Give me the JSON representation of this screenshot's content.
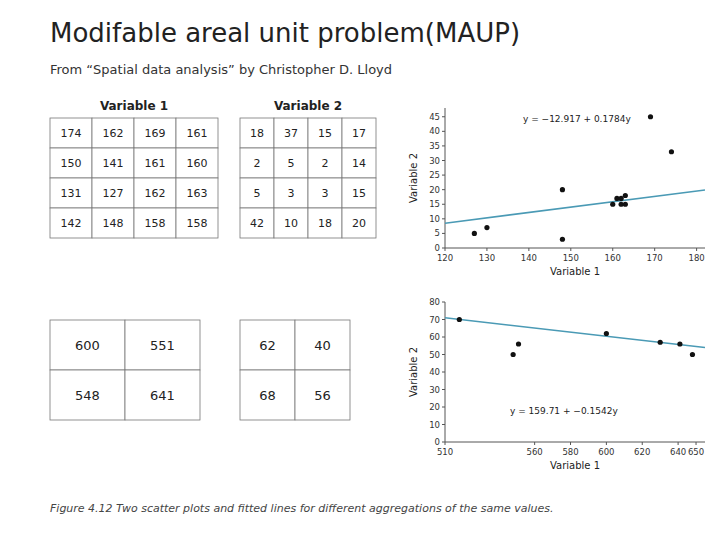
{
  "title": "Modifable areal unit problem(MAUP)",
  "subtitle": "From “Spatial data analysis” by Christopher D. Lloyd",
  "caption": "Figure 4.12  Two scatter plots and fitted lines for different aggregations of the same values.",
  "chart_data": [
    {
      "type": "table",
      "title": "Variable 1",
      "cells": [
        [
          174,
          162,
          169,
          161
        ],
        [
          150,
          141,
          161,
          160
        ],
        [
          131,
          127,
          162,
          163
        ],
        [
          142,
          148,
          158,
          158
        ]
      ]
    },
    {
      "type": "table",
      "title": "Variable 2",
      "cells": [
        [
          18,
          37,
          15,
          17
        ],
        [
          2,
          5,
          2,
          14
        ],
        [
          5,
          3,
          3,
          15
        ],
        [
          42,
          10,
          18,
          20
        ]
      ]
    },
    {
      "type": "table",
      "cells": [
        [
          600,
          551
        ],
        [
          548,
          641
        ]
      ]
    },
    {
      "type": "table",
      "cells": [
        [
          62,
          40
        ],
        [
          68,
          56
        ]
      ]
    },
    {
      "type": "scatter",
      "x_label": "Variable 1",
      "y_label": "Variable 2",
      "annotations": [
        "y = −12.917 + 0.1784y"
      ],
      "xlim": [
        120,
        182
      ],
      "ylim": [
        0,
        48
      ],
      "xticks": [
        120,
        130,
        140,
        150,
        160,
        170,
        180
      ],
      "yticks": [
        0,
        5,
        10,
        15,
        20,
        25,
        30,
        35,
        40,
        45
      ],
      "grid": false,
      "series": [
        {
          "type": "scatter",
          "color": "#111111",
          "x": [
            127,
            130,
            148,
            148,
            160,
            161,
            162,
            162,
            163,
            163,
            169,
            174
          ],
          "values": [
            5,
            7,
            3,
            20,
            15,
            17,
            15,
            17,
            18,
            15,
            45,
            33
          ]
        },
        {
          "type": "line",
          "color": "#4a9ab5",
          "x": [
            120,
            182
          ],
          "values": [
            8.5,
            19.9
          ]
        }
      ]
    },
    {
      "type": "scatter",
      "x_label": "Variable 1",
      "y_label": "Variable 2",
      "annotations": [
        "y = 159.71 + −0.1542y"
      ],
      "xlim": [
        510,
        655
      ],
      "ylim": [
        0,
        80
      ],
      "xticks": [
        510,
        560,
        580,
        600,
        620,
        640,
        650
      ],
      "yticks": [
        0,
        10,
        20,
        30,
        40,
        50,
        60,
        70,
        80
      ],
      "grid": false,
      "series": [
        {
          "type": "scatter",
          "color": "#111111",
          "x": [
            518,
            548,
            551,
            600,
            630,
            641,
            648
          ],
          "values": [
            70,
            50,
            56,
            62,
            57,
            56,
            50
          ]
        },
        {
          "type": "line",
          "color": "#4a9ab5",
          "x": [
            510,
            655
          ],
          "values": [
            71,
            54
          ]
        }
      ]
    }
  ]
}
